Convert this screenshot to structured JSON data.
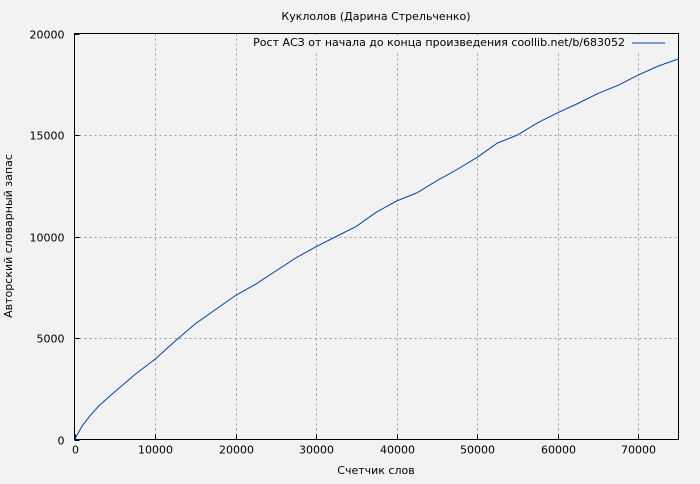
{
  "chart_data": {
    "type": "line",
    "title": "Куклолов (Дарина Стрельченко)",
    "xlabel": "Счетчик слов",
    "ylabel": "Авторский словарный запас",
    "xlim": [
      0,
      75000
    ],
    "ylim": [
      0,
      20000
    ],
    "xticks": [
      0,
      10000,
      20000,
      30000,
      40000,
      50000,
      60000,
      70000
    ],
    "yticks": [
      0,
      5000,
      10000,
      15000,
      20000
    ],
    "grid": true,
    "legend_position": "top-right",
    "series": [
      {
        "name": "Рост АСЗ от начала до конца произведения coollib.net/b/683052",
        "color": "#0044aa",
        "x": [
          0,
          1000,
          2000,
          3000,
          4000,
          5000,
          7500,
          10000,
          12500,
          15000,
          17500,
          20000,
          22500,
          25000,
          27500,
          30000,
          32500,
          35000,
          37500,
          40000,
          42500,
          45000,
          47500,
          50000,
          52500,
          55000,
          57500,
          60000,
          62500,
          65000,
          67500,
          70000,
          72500,
          75000
        ],
        "y": [
          0,
          700,
          1200,
          1650,
          2000,
          2350,
          3200,
          3950,
          4850,
          5700,
          6400,
          7100,
          7650,
          8300,
          8950,
          9500,
          10000,
          10500,
          11200,
          11750,
          12150,
          12750,
          13300,
          13900,
          14600,
          15000,
          15600,
          16100,
          16550,
          17050,
          17450,
          17950,
          18400,
          18750
        ]
      }
    ]
  }
}
